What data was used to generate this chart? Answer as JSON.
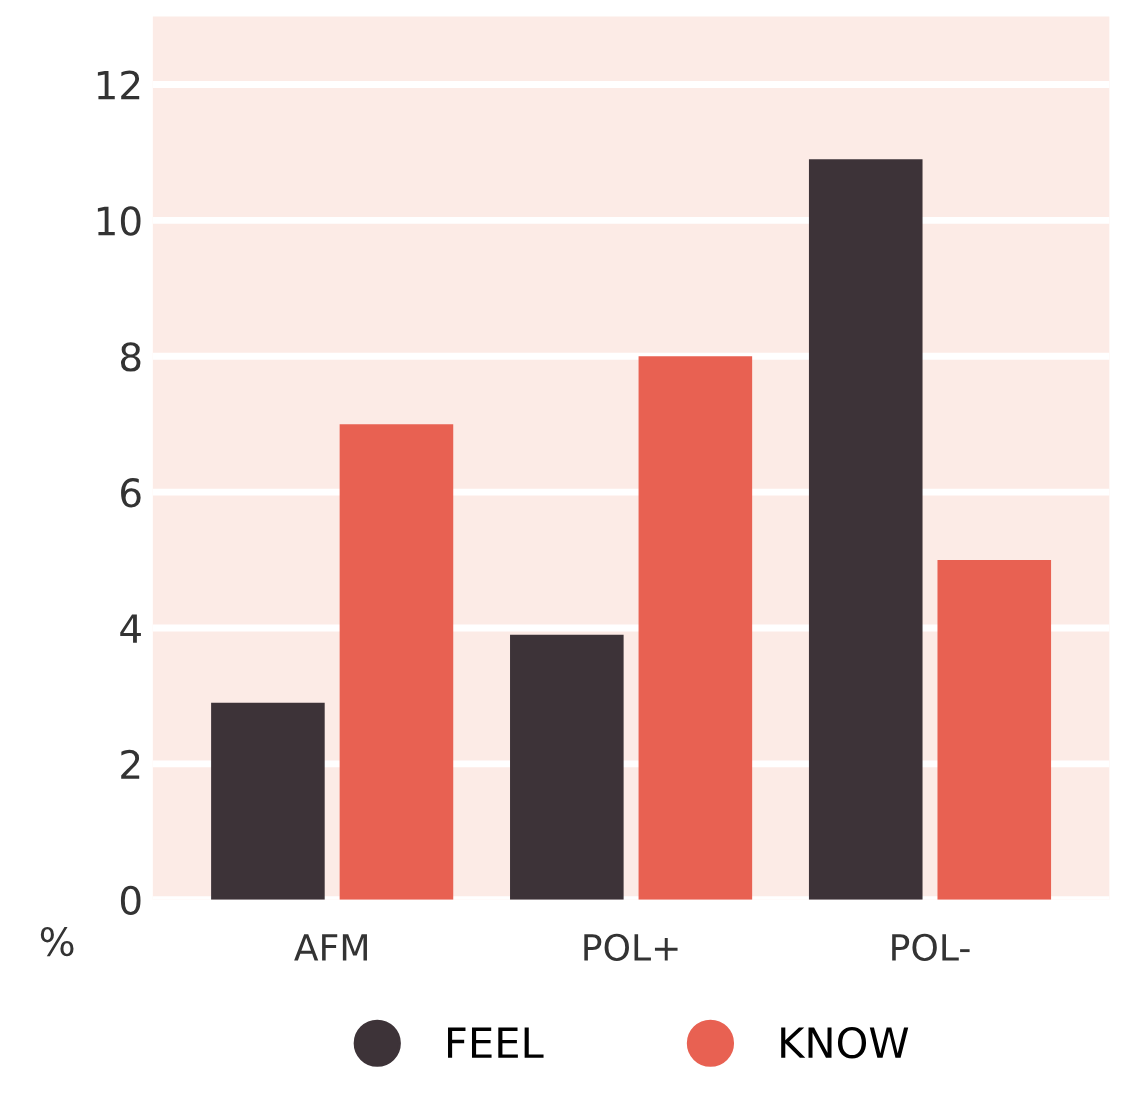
{
  "chart_data": {
    "type": "bar",
    "categories": [
      "AFM",
      "POL+",
      "POL-"
    ],
    "ylabel": "%",
    "series": [
      {
        "name": "FEEL",
        "color": "#3d3338",
        "values": [
          2.9,
          3.9,
          10.9
        ]
      },
      {
        "name": "KNOW",
        "color": "#e86152",
        "values": [
          7,
          8,
          5
        ]
      }
    ],
    "ylim": [
      0,
      13
    ],
    "yticks": [
      0,
      2,
      4,
      6,
      8,
      10,
      12
    ],
    "grid": "y",
    "legend": "bottom",
    "marker": "circle"
  }
}
